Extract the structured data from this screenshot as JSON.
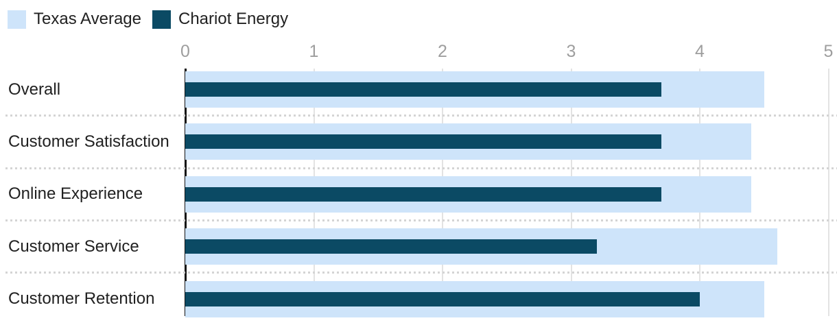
{
  "chart_data": {
    "type": "bar",
    "orientation": "horizontal",
    "title": "",
    "categories": [
      "Overall",
      "Customer Satisfaction",
      "Online Experience",
      "Customer Service",
      "Customer Retention"
    ],
    "series": [
      {
        "name": "Texas Average",
        "color": "#cee4fa",
        "values": [
          4.5,
          4.4,
          4.4,
          4.6,
          4.5
        ]
      },
      {
        "name": "Chariot Energy",
        "color": "#0b4a64",
        "values": [
          3.7,
          3.7,
          3.7,
          3.2,
          4.0
        ]
      }
    ],
    "xlim": [
      0,
      5
    ],
    "x_ticks": [
      "0",
      "1",
      "2",
      "3",
      "4",
      "5"
    ],
    "grid": true,
    "legend_position": "top-left"
  },
  "colors": {
    "axis_line": "#111111",
    "gridline": "#e3e3e3",
    "tick_label": "#9e9e9e",
    "category_label": "#212121",
    "separator": "#d4d4d4",
    "background": "#ffffff"
  }
}
